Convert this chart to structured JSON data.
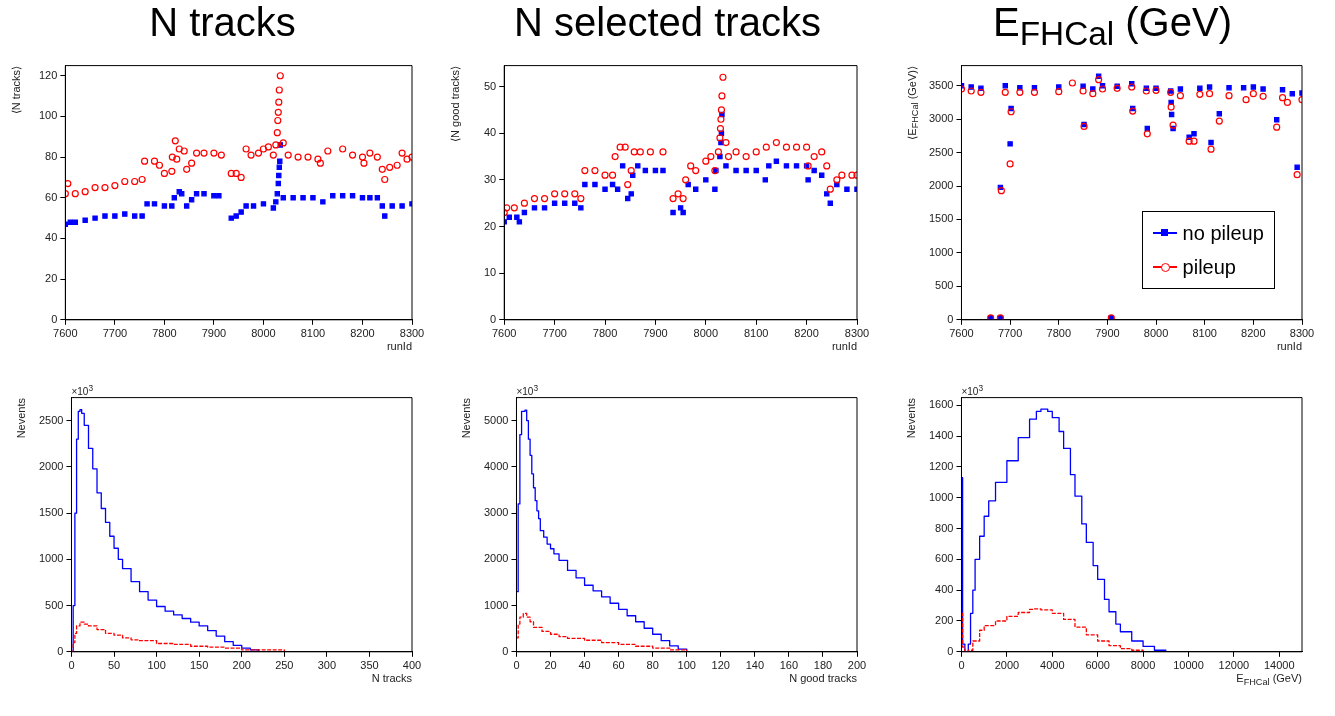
{
  "chart_data": [
    {
      "type": "scatter",
      "title": "N tracks",
      "xlabel": "runId",
      "ylabel": "⟨N tracks⟩",
      "xlim": [
        7600,
        8300
      ],
      "xticks": [
        7600,
        7700,
        7800,
        7900,
        8000,
        8100,
        8200,
        8300
      ],
      "ylim": [
        0,
        125
      ],
      "yticks": [
        0,
        20,
        40,
        60,
        80,
        100,
        120
      ],
      "series": [
        {
          "color": "#0000ff",
          "marker": "square",
          "x": [
            7600,
            7610,
            7620,
            7640,
            7660,
            7680,
            7700,
            7720,
            7740,
            7755,
            7765,
            7780,
            7800,
            7815,
            7820,
            7830,
            7835,
            7845,
            7855,
            7865,
            7880,
            7900,
            7910,
            7935,
            7945,
            7955,
            7965,
            7980,
            8000,
            8020,
            8025,
            8028,
            8030,
            8031,
            8032,
            8033,
            8034,
            8040,
            8060,
            8080,
            8100,
            8120,
            8140,
            8160,
            8180,
            8200,
            8215,
            8230,
            8240,
            8245,
            8260,
            8280,
            8300
          ],
          "values": [
            47,
            48,
            48,
            49,
            50,
            51,
            51,
            52,
            51,
            51,
            57,
            57,
            56,
            56,
            60,
            63,
            62,
            56,
            59,
            62,
            62,
            61,
            61,
            50,
            51,
            53,
            56,
            56,
            57,
            55,
            58,
            62,
            67,
            71,
            75,
            78,
            86,
            60,
            60,
            60,
            60,
            58,
            61,
            61,
            61,
            60,
            60,
            60,
            56,
            51,
            56,
            56,
            57
          ]
        },
        {
          "color": "#ff0000",
          "marker": "circle",
          "x": [
            7600,
            7605,
            7620,
            7640,
            7660,
            7680,
            7700,
            7720,
            7740,
            7755,
            7760,
            7780,
            7790,
            7800,
            7815,
            7816,
            7822,
            7825,
            7830,
            7840,
            7845,
            7855,
            7865,
            7880,
            7900,
            7915,
            7935,
            7945,
            7955,
            7965,
            7975,
            7990,
            8000,
            8010,
            8020,
            8025,
            8028,
            8029,
            8030,
            8031,
            8032,
            8034,
            8040,
            8050,
            8070,
            8090,
            8110,
            8115,
            8130,
            8160,
            8180,
            8200,
            8203,
            8215,
            8230,
            8240,
            8245,
            8255,
            8270,
            8280,
            8290,
            8300
          ],
          "values": [
            62,
            67,
            62,
            63,
            65,
            65,
            66,
            68,
            68,
            69,
            78,
            78,
            76,
            72,
            73,
            80,
            88,
            79,
            84,
            83,
            74,
            77,
            82,
            82,
            82,
            81,
            72,
            72,
            70,
            84,
            81,
            82,
            84,
            85,
            81,
            86,
            92,
            98,
            102,
            107,
            113,
            120,
            87,
            81,
            80,
            80,
            79,
            77,
            83,
            84,
            81,
            80,
            77,
            82,
            80,
            74,
            69,
            75,
            76,
            82,
            79,
            80
          ]
        }
      ]
    },
    {
      "type": "scatter",
      "title": "N selected tracks",
      "xlabel": "runId",
      "ylabel": "⟨N good tracks⟩",
      "xlim": [
        7600,
        8300
      ],
      "xticks": [
        7600,
        7700,
        7800,
        7900,
        8000,
        8100,
        8200,
        8300
      ],
      "ylim": [
        0,
        54.5
      ],
      "yticks": [
        0,
        10,
        20,
        30,
        40,
        50
      ],
      "series": [
        {
          "color": "#0000ff",
          "marker": "square",
          "x": [
            7600,
            7610,
            7625,
            7630,
            7640,
            7660,
            7680,
            7700,
            7720,
            7740,
            7752,
            7760,
            7780,
            7800,
            7815,
            7825,
            7835,
            7845,
            7852,
            7855,
            7865,
            7880,
            7900,
            7915,
            7935,
            7950,
            7955,
            7965,
            7980,
            8000,
            8018,
            8020,
            8028,
            8030,
            8031,
            8032,
            8040,
            8060,
            8080,
            8100,
            8118,
            8125,
            8140,
            8160,
            8180,
            8200,
            8203,
            8215,
            8230,
            8240,
            8247,
            8260,
            8280,
            8300
          ],
          "values": [
            21,
            22,
            22,
            21,
            23,
            24,
            24,
            25,
            25,
            25,
            24,
            29,
            29,
            28,
            29,
            28,
            33,
            26,
            27,
            31,
            33,
            32,
            32,
            32,
            23,
            24,
            23,
            29,
            28,
            30,
            28,
            32,
            35,
            38,
            40,
            44,
            33,
            32,
            32,
            32,
            30,
            33,
            34,
            33,
            33,
            33,
            30,
            32,
            31,
            27,
            25,
            29,
            28,
            28
          ]
        },
        {
          "color": "#ff0000",
          "marker": "circle",
          "x": [
            7600,
            7605,
            7620,
            7640,
            7660,
            7680,
            7700,
            7720,
            7740,
            7752,
            7760,
            7780,
            7800,
            7815,
            7820,
            7830,
            7840,
            7845,
            7852,
            7858,
            7870,
            7890,
            7915,
            7935,
            7945,
            7955,
            7960,
            7970,
            7980,
            8000,
            8010,
            8018,
            8025,
            8028,
            8029,
            8030,
            8031,
            8032,
            8034,
            8040,
            8045,
            8060,
            8080,
            8100,
            8120,
            8140,
            8160,
            8180,
            8200,
            8203,
            8215,
            8230,
            8240,
            8247,
            8260,
            8270,
            8290,
            8300
          ],
          "values": [
            23,
            24,
            24,
            25,
            26,
            26,
            27,
            27,
            27,
            26,
            32,
            32,
            31,
            31,
            35,
            37,
            37,
            29,
            32,
            36,
            36,
            36,
            36,
            26,
            27,
            26,
            30,
            33,
            32,
            34,
            35,
            32,
            36,
            39,
            41,
            43,
            45,
            48,
            52,
            38,
            35,
            36,
            35,
            36,
            37,
            38,
            37,
            37,
            37,
            33,
            35,
            36,
            33,
            28,
            30,
            31,
            31,
            31
          ]
        }
      ]
    },
    {
      "type": "scatter",
      "title": "E$_{FHCal}$ (GeV)",
      "xlabel": "runId",
      "ylabel": "⟨E$_{FHCal}$ (GeV)⟩",
      "xlim": [
        7600,
        8300
      ],
      "xticks": [
        7600,
        7700,
        7800,
        7900,
        8000,
        8100,
        8200,
        8300
      ],
      "ylim": [
        0,
        3800
      ],
      "yticks": [
        0,
        500,
        1000,
        1500,
        2000,
        2500,
        3000,
        3500
      ],
      "legend": "bottom right",
      "series": [
        {
          "name": "no pileup",
          "color": "#0000ff",
          "marker": "square",
          "x": [
            7600,
            7620,
            7640,
            7660,
            7680,
            7680,
            7690,
            7700,
            7702,
            7720,
            7750,
            7800,
            7850,
            7852,
            7870,
            7882,
            7890,
            7908,
            7920,
            7950,
            7952,
            7980,
            7982,
            8000,
            8030,
            8031,
            8032,
            8035,
            8050,
            8068,
            8078,
            8090,
            8110,
            8113,
            8130,
            8150,
            8180,
            8200,
            8220,
            8248,
            8260,
            8280,
            8290,
            8300
          ],
          "values": [
            3500,
            3480,
            3460,
            30,
            30,
            1980,
            3500,
            2630,
            3160,
            3470,
            3470,
            3480,
            3490,
            2920,
            3450,
            3640,
            3500,
            30,
            3490,
            3530,
            3160,
            3460,
            2860,
            3460,
            3420,
            3250,
            3070,
            2860,
            3450,
            2730,
            2780,
            3460,
            3480,
            2650,
            3080,
            3470,
            3470,
            3480,
            3450,
            2990,
            3440,
            3380,
            2280,
            3390
          ]
        },
        {
          "name": "pileup",
          "color": "#ff0000",
          "marker": "circle",
          "x": [
            7600,
            7620,
            7640,
            7660,
            7680,
            7682,
            7690,
            7700,
            7702,
            7720,
            7750,
            7800,
            7828,
            7850,
            7852,
            7870,
            7882,
            7890,
            7908,
            7920,
            7950,
            7952,
            7980,
            7982,
            8000,
            8030,
            8031,
            8035,
            8050,
            8068,
            8078,
            8090,
            8110,
            8113,
            8130,
            8150,
            8185,
            8200,
            8220,
            8248,
            8260,
            8270,
            8290,
            8300
          ],
          "values": [
            3450,
            3420,
            3400,
            30,
            30,
            1930,
            3400,
            2330,
            3110,
            3400,
            3400,
            3410,
            3540,
            3420,
            2890,
            3380,
            3590,
            3450,
            30,
            3460,
            3480,
            3120,
            3420,
            2780,
            3430,
            3400,
            3180,
            2910,
            3350,
            2670,
            2670,
            3370,
            3380,
            2550,
            2970,
            3350,
            3290,
            3380,
            3340,
            2880,
            3320,
            3250,
            2170,
            3290
          ]
        }
      ]
    },
    {
      "type": "step",
      "xlabel": "N tracks",
      "ylabel": "Nevents",
      "annotations": [
        "×10$^{3}$"
      ],
      "xlim": [
        0,
        400
      ],
      "xticks": [
        0,
        50,
        100,
        150,
        200,
        250,
        300,
        350,
        400
      ],
      "ylim": [
        0,
        2750
      ],
      "yticks": [
        0,
        500,
        1000,
        1500,
        2000,
        2500
      ],
      "series": [
        {
          "color": "#0000ff",
          "line_style": "solid",
          "x": [
            0,
            2,
            4,
            6,
            8,
            10,
            12,
            15,
            20,
            25,
            30,
            35,
            40,
            45,
            50,
            55,
            60,
            70,
            80,
            90,
            100,
            110,
            120,
            130,
            140,
            150,
            160,
            170,
            180,
            190,
            200,
            210,
            220
          ],
          "values": [
            0,
            500,
            1500,
            2300,
            2600,
            2620,
            2580,
            2450,
            2200,
            1980,
            1720,
            1550,
            1400,
            1250,
            1120,
            1000,
            900,
            760,
            650,
            560,
            490,
            440,
            400,
            360,
            320,
            280,
            230,
            170,
            110,
            70,
            40,
            20,
            10
          ]
        },
        {
          "color": "#ff0000",
          "line_style": "dashed",
          "x": [
            0,
            2,
            4,
            6,
            10,
            15,
            20,
            30,
            40,
            50,
            60,
            70,
            80,
            100,
            120,
            140,
            160,
            180,
            200,
            250
          ],
          "values": [
            0,
            100,
            200,
            280,
            320,
            300,
            280,
            240,
            200,
            180,
            150,
            130,
            120,
            90,
            80,
            60,
            50,
            40,
            20,
            10
          ]
        }
      ]
    },
    {
      "type": "step",
      "xlabel": "N good tracks",
      "ylabel": "Nevents",
      "annotations": [
        "×10$^{3}$"
      ],
      "xlim": [
        0,
        200
      ],
      "xticks": [
        0,
        20,
        40,
        60,
        80,
        100,
        120,
        140,
        160,
        180,
        200
      ],
      "ylim": [
        0,
        5500
      ],
      "yticks": [
        0,
        1000,
        2000,
        3000,
        4000,
        5000
      ],
      "series": [
        {
          "color": "#0000ff",
          "line_style": "solid",
          "x": [
            0,
            1,
            2,
            3,
            4,
            5,
            6,
            7,
            8,
            9,
            10,
            11,
            12,
            13,
            14,
            16,
            18,
            20,
            22,
            25,
            30,
            35,
            40,
            45,
            50,
            55,
            60,
            65,
            70,
            75,
            80,
            85,
            90,
            95,
            100
          ],
          "values": [
            1300,
            3200,
            4700,
            5200,
            5200,
            5230,
            5000,
            4600,
            4250,
            3850,
            3550,
            3270,
            3050,
            2880,
            2620,
            2480,
            2330,
            2230,
            2120,
            1980,
            1760,
            1600,
            1440,
            1320,
            1190,
            1050,
            920,
            780,
            650,
            510,
            380,
            240,
            130,
            60,
            30
          ]
        },
        {
          "color": "#ff0000",
          "line_style": "dashed",
          "x": [
            0,
            1,
            2,
            4,
            6,
            8,
            10,
            15,
            20,
            25,
            30,
            40,
            50,
            60,
            70,
            80,
            90,
            100
          ],
          "values": [
            300,
            600,
            750,
            830,
            750,
            650,
            530,
            440,
            380,
            330,
            290,
            250,
            200,
            160,
            120,
            80,
            40,
            20
          ]
        }
      ]
    },
    {
      "type": "step",
      "xlabel": "E$_{FHCal}$ (GeV)",
      "ylabel": "Nevents",
      "annotations": [
        "×10$^{3}$"
      ],
      "xlim": [
        0,
        15000
      ],
      "xticks": [
        0,
        2000,
        4000,
        6000,
        8000,
        10000,
        12000,
        14000
      ],
      "ylim": [
        0,
        1650
      ],
      "yticks": [
        0,
        200,
        400,
        600,
        800,
        1000,
        1200,
        1400,
        1600
      ],
      "series": [
        {
          "color": "#0000ff",
          "line_style": "solid",
          "x": [
            0,
            50,
            150,
            300,
            400,
            500,
            600,
            800,
            1000,
            1200,
            1500,
            2000,
            2500,
            3000,
            3300,
            3500,
            3800,
            4000,
            4300,
            4500,
            4800,
            5000,
            5300,
            5500,
            5800,
            6000,
            6300,
            6500,
            6800,
            7000,
            7500,
            8000,
            8500,
            9000
          ],
          "values": [
            1130,
            50,
            0,
            50,
            250,
            400,
            600,
            750,
            880,
            980,
            1100,
            1240,
            1390,
            1510,
            1560,
            1575,
            1560,
            1520,
            1430,
            1320,
            1150,
            1010,
            830,
            710,
            560,
            470,
            340,
            260,
            180,
            130,
            70,
            35,
            10,
            3
          ]
        },
        {
          "color": "#ff0000",
          "line_style": "dashed",
          "x": [
            0,
            50,
            150,
            300,
            500,
            800,
            1000,
            1500,
            2000,
            2500,
            3000,
            3200,
            3500,
            4000,
            4500,
            5000,
            5500,
            6000,
            6500,
            7000,
            7500,
            8000
          ],
          "values": [
            250,
            30,
            0,
            10,
            70,
            140,
            170,
            200,
            230,
            255,
            275,
            278,
            272,
            250,
            210,
            160,
            110,
            70,
            40,
            20,
            10,
            5
          ]
        }
      ]
    }
  ]
}
